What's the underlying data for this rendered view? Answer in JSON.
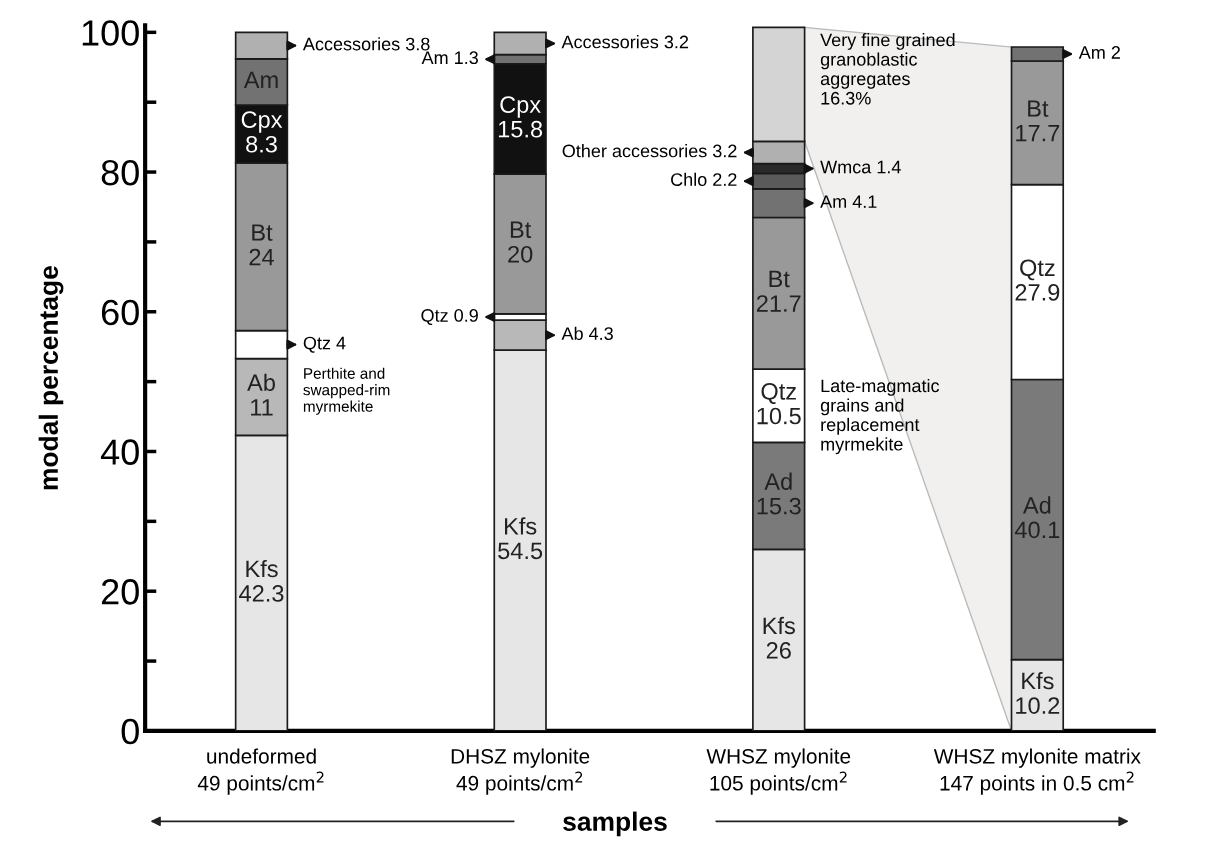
{
  "chart_data": {
    "type": "bar",
    "stacked": true,
    "ylabel": "modal percentage",
    "xlabel": "samples",
    "categories": [
      "undeformed\n49 points/cm$^{2}$",
      "DHSZ mylonite\n49 points/cm$^{2}$",
      "WHSZ mylonite\n105 points/cm$^{2}$",
      "WHSZ mylonite matrix\n147 points in 0.5 cm$^{2}$"
    ],
    "ylim": [
      0,
      101
    ],
    "yticks": [
      0,
      {
        "value": 10,
        "label": null
      },
      20,
      {
        "value": 30,
        "label": null
      },
      40,
      {
        "value": 50,
        "label": null
      },
      60,
      {
        "value": 70,
        "label": null
      },
      80,
      {
        "value": 90,
        "label": null
      },
      100
    ],
    "grid": false,
    "legend": false,
    "series": [
      {
        "color": "#e6e6e6",
        "values": [
          42.3,
          54.5,
          26,
          10.2
        ],
        "value_labels": [
          "Kfs\n42.3",
          "Kfs\n54.5",
          "Kfs\n26",
          "Kfs\n10.2"
        ]
      },
      {
        "color": "#b8b8b8",
        "values": [
          11,
          4.3,
          null,
          null
        ],
        "value_labels": [
          "Ab\n11",
          "Ab 4.3",
          null,
          null
        ]
      },
      {
        "color": "#7a7a7a",
        "values": [
          null,
          null,
          15.3,
          40.1
        ],
        "value_labels": [
          null,
          null,
          "Ad\n15.3",
          "Ad\n40.1"
        ]
      },
      {
        "color": "#ffffff",
        "values": [
          4,
          0.9,
          10.5,
          27.9
        ],
        "value_labels": [
          "Qtz 4",
          "Qtz 0.9",
          "Qtz\n10.5",
          "Qtz\n27.9"
        ]
      },
      {
        "color": "#999999",
        "values": [
          24,
          20,
          21.7,
          17.7
        ],
        "value_labels": [
          "Bt\n24",
          "Bt\n20",
          "Bt\n21.7",
          "Bt\n17.7"
        ]
      },
      {
        "color": "#111111",
        "values": [
          8.3,
          15.8,
          null,
          null
        ],
        "value_labels": [
          "Cpx\n8.3",
          "Cpx\n15.8",
          null,
          null
        ]
      },
      {
        "color": "#727272",
        "values": [
          6.6,
          1.3,
          4.1,
          2
        ],
        "value_labels": [
          "Am",
          "Am 1.3",
          "Am 4.1",
          "Am 2"
        ]
      },
      {
        "color": "#5a5a5a",
        "values": [
          null,
          null,
          2.2,
          null
        ],
        "value_labels": [
          null,
          null,
          "Chlo 2.2",
          null
        ]
      },
      {
        "color": "#2a2a2a",
        "values": [
          null,
          null,
          1.4,
          null
        ],
        "value_labels": [
          null,
          null,
          "Wmca 1.4",
          null
        ]
      },
      {
        "color": "#b0b0b0",
        "values": [
          3.8,
          3.2,
          3.2,
          null
        ],
        "value_labels": [
          "Accessories 3.8",
          "Accessories 3.2",
          "Other accessories 3.2",
          null
        ]
      },
      {
        "color": "#d4d4d4",
        "values": [
          null,
          null,
          16.3,
          null
        ],
        "value_labels": [
          null,
          null,
          "Very fine grained\ngranoblastic\naggregates\n16.3%",
          null
        ]
      }
    ],
    "annotations": [
      "Perthite and\nswapped-rim\nmyrmekite",
      "Late-magmatic\ngrains and\nreplacement\nmyrmekite"
    ]
  }
}
